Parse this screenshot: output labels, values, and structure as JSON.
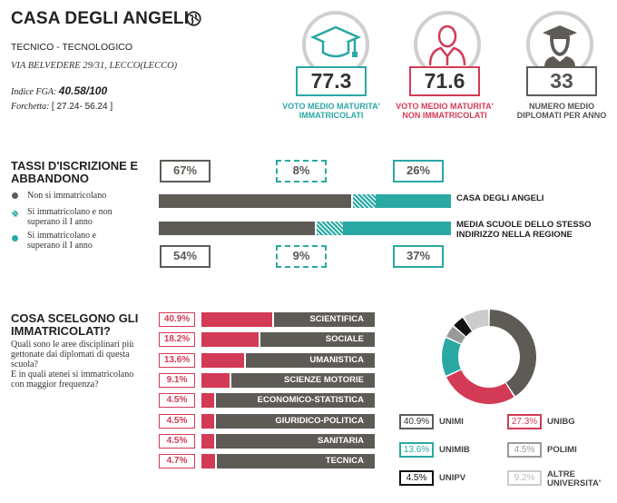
{
  "header": {
    "title": "CASA DEGLI ANGELI",
    "school_type": "TECNICO - TECNOLOGICO",
    "address": "VIA BELVEDERE 29/31, LECCO(LECCO)",
    "fga_label": "Indice FGA:",
    "fga_value": "40.58/100",
    "range_label": "Forchetta:",
    "range_value": "[ 27.24- 56.24 ]"
  },
  "kpis": [
    {
      "value": "77.3",
      "label_1": "VOTO MEDIO MATURITA'",
      "label_2": "IMMATRICOLATI",
      "color": "#2aa8a4",
      "icon": "graduation-cap-icon"
    },
    {
      "value": "71.6",
      "label_1": "VOTO MEDIO MATURITA'",
      "label_2": "NON IMMATRICOLATI",
      "color": "#d33a55",
      "icon": "person-icon"
    },
    {
      "value": "33",
      "label_1": "NUMERO MEDIO",
      "label_2": "DIPLOMATI PER ANNO",
      "color": "#5e5b56",
      "icon": "graduate-person-icon"
    }
  ],
  "enrollment": {
    "title_1": "TASSI D'ISCRIZIONE E",
    "title_2": "ABBANDONO",
    "legend": [
      {
        "text_1": "Non si immatricolano",
        "text_2": "",
        "color": "#5e5b56"
      },
      {
        "text_1": "Si immatricolano e non",
        "text_2": "superano il I anno",
        "color": "#2aa8a4"
      },
      {
        "text_1": "Si immatricolano e",
        "text_2": "superano il I anno",
        "color": "#2aa8a4"
      }
    ],
    "school": {
      "label": "CASA DEGLI ANGELI",
      "pcts": [
        "67%",
        "8%",
        "26%"
      ],
      "values": [
        67,
        8,
        26
      ]
    },
    "region": {
      "label_1": "MEDIA SCUOLE DELLO STESSO",
      "label_2": "INDIRIZZO NELLA REGIONE",
      "pcts": [
        "54%",
        "9%",
        "37%"
      ],
      "values": [
        54,
        9,
        37
      ]
    },
    "colors": {
      "dark": "#5e5b56",
      "teal": "#2aa8a4"
    }
  },
  "areas": {
    "title_1": "COSA SCELGONO GLI",
    "title_2": "IMMATRICOLATI?",
    "question_lines": [
      "Quali sono le aree disciplinari più",
      "gettonate dai diplomati di questa",
      "scuola?",
      "E in quali atenei si immatricolano",
      "con maggior frequenza?"
    ],
    "items": [
      {
        "pct": "40.9%",
        "value": 40.9,
        "label": "SCIENTIFICA"
      },
      {
        "pct": "18.2%",
        "value": 18.2,
        "label": "SOCIALE"
      },
      {
        "pct": "13.6%",
        "value": 13.6,
        "label": "UMANISTICA"
      },
      {
        "pct": "9.1%",
        "value": 9.1,
        "label": "SCIENZE MOTORIE"
      },
      {
        "pct": "4.5%",
        "value": 4.5,
        "label": "ECONOMICO-STATISTICA"
      },
      {
        "pct": "4.5%",
        "value": 4.5,
        "label": "GIURIDICO-POLITICA"
      },
      {
        "pct": "4.5%",
        "value": 4.5,
        "label": "SANITARIA"
      },
      {
        "pct": "4.7%",
        "value": 4.7,
        "label": "TECNICA"
      }
    ]
  },
  "universities": [
    {
      "pct": "40.9%",
      "value": 40.9,
      "name_1": "UNIMI",
      "name_2": "",
      "color": "#5e5b56",
      "text_color": "#333"
    },
    {
      "pct": "27.3%",
      "value": 27.3,
      "name_1": "UNIBG",
      "name_2": "",
      "color": "#d33a55",
      "text_color": "#d33a55"
    },
    {
      "pct": "13.6%",
      "value": 13.6,
      "name_1": "UNIMIB",
      "name_2": "",
      "color": "#2aa8a4",
      "text_color": "#2aa8a4"
    },
    {
      "pct": "4.5%",
      "value": 4.5,
      "name_1": "POLIMI",
      "name_2": "",
      "color": "#999999",
      "text_color": "#999"
    },
    {
      "pct": "4.5%",
      "value": 4.5,
      "name_1": "UNIPV",
      "name_2": "",
      "color": "#111111",
      "text_color": "#111"
    },
    {
      "pct": "9.2%",
      "value": 9.2,
      "name_1": "ALTRE",
      "name_2": "UNIVERSITA'",
      "color": "#cccccc",
      "text_color": "#bbb"
    }
  ]
}
